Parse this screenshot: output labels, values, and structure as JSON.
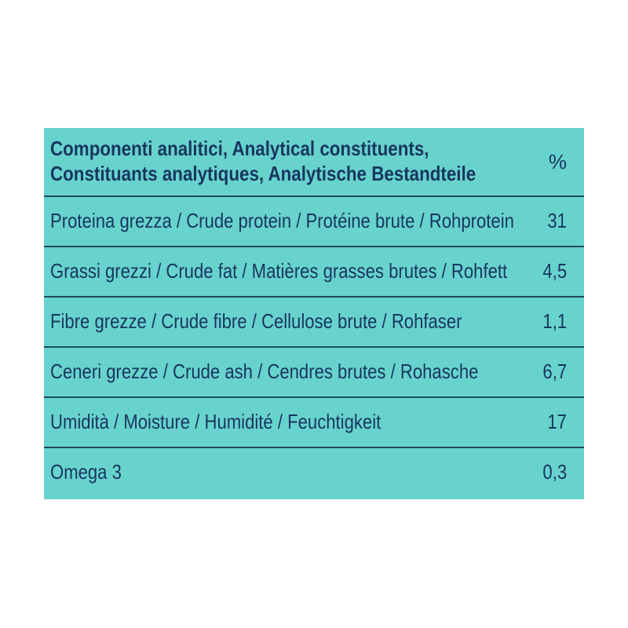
{
  "table": {
    "header": {
      "line1": "Componenti analitici, Analytical constituents,",
      "line2": "Constituants analytiques, Analytische Bestandteile",
      "unit": "%"
    },
    "rows": [
      {
        "label": "Proteina grezza / Crude protein / Protéine brute / Rohprotein",
        "value": "31"
      },
      {
        "label": "Grassi grezzi / Crude fat / Matières grasses brutes / Rohfett",
        "value": "4,5"
      },
      {
        "label": "Fibre grezze / Crude fibre / Cellulose brute / Rohfaser",
        "value": "1,1"
      },
      {
        "label": "Ceneri grezze / Crude ash / Cendres brutes / Rohasche",
        "value": "6,7"
      },
      {
        "label": "Umidità / Moisture / Humidité / Feuchtigkeit",
        "value": "17"
      },
      {
        "label": "Omega 3",
        "value": "0,3"
      }
    ],
    "colors": {
      "background": "#68d3cd",
      "text": "#17365f",
      "divider": "#1e4a5e"
    }
  }
}
